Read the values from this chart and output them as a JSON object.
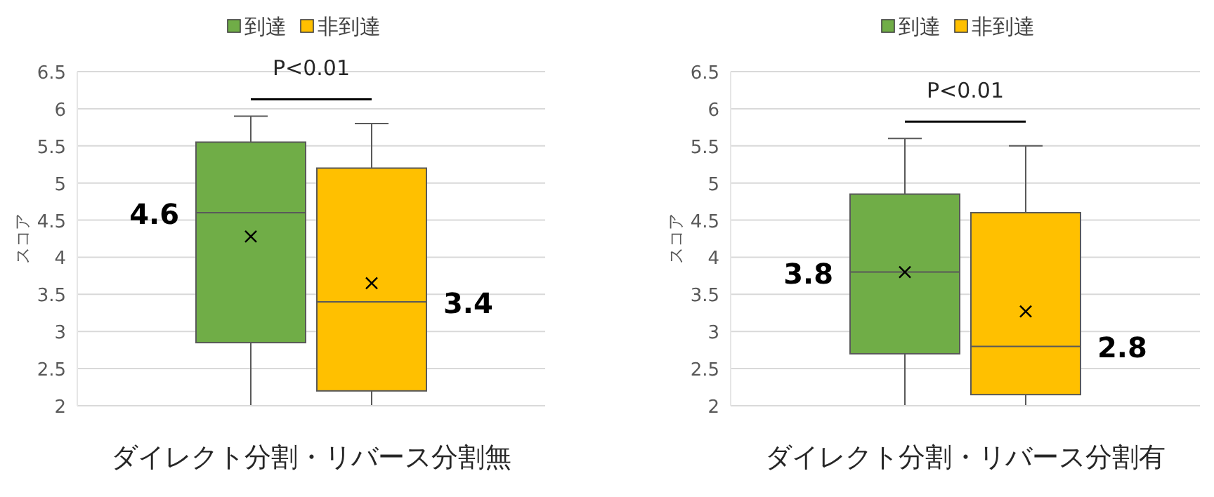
{
  "chart_data": [
    {
      "type": "box",
      "xlabel": "ダイレクト分割・リバース分割無",
      "ylabel": "スコア",
      "categories": [
        null
      ],
      "series": [
        {
          "name": "到達",
          "color": "#70ad47",
          "boxes": [
            {
              "low": 2,
              "q1": 2.85,
              "median": 4.6,
              "q3": 5.55,
              "high": 5.9,
              "mean": 4.28
            }
          ]
        },
        {
          "name": "非到達",
          "color": "#ffc000",
          "boxes": [
            {
              "low": 2,
              "q1": 2.2,
              "median": 3.4,
              "q3": 5.2,
              "high": 5.8,
              "mean": 3.65
            }
          ]
        }
      ],
      "ylim": [
        2,
        6.5
      ],
      "yticks": [
        2,
        2.5,
        3,
        3.5,
        4,
        4.5,
        5,
        5.5,
        6,
        6.5
      ],
      "grid": "y",
      "legend": "top",
      "annotations": [
        "P<0.01",
        "4.6",
        "3.4"
      ]
    },
    {
      "type": "box",
      "xlabel": "ダイレクト分割・リバース分割有",
      "ylabel": "スコア",
      "categories": [
        null
      ],
      "series": [
        {
          "name": "到達",
          "color": "#70ad47",
          "boxes": [
            {
              "low": 2,
              "q1": 2.7,
              "median": 3.8,
              "q3": 4.85,
              "high": 5.6,
              "mean": 3.8
            }
          ]
        },
        {
          "name": "非到達",
          "color": "#ffc000",
          "boxes": [
            {
              "low": 2,
              "q1": 2.15,
              "median": 2.8,
              "q3": 4.6,
              "high": 5.5,
              "mean": 3.27
            }
          ]
        }
      ],
      "ylim": [
        2,
        6.5
      ],
      "yticks": [
        2,
        2.5,
        3,
        3.5,
        4,
        4.5,
        5,
        5.5,
        6,
        6.5
      ],
      "grid": "y",
      "legend": "top",
      "annotations": [
        "P<0.01",
        "3.8",
        "2.8"
      ]
    }
  ]
}
